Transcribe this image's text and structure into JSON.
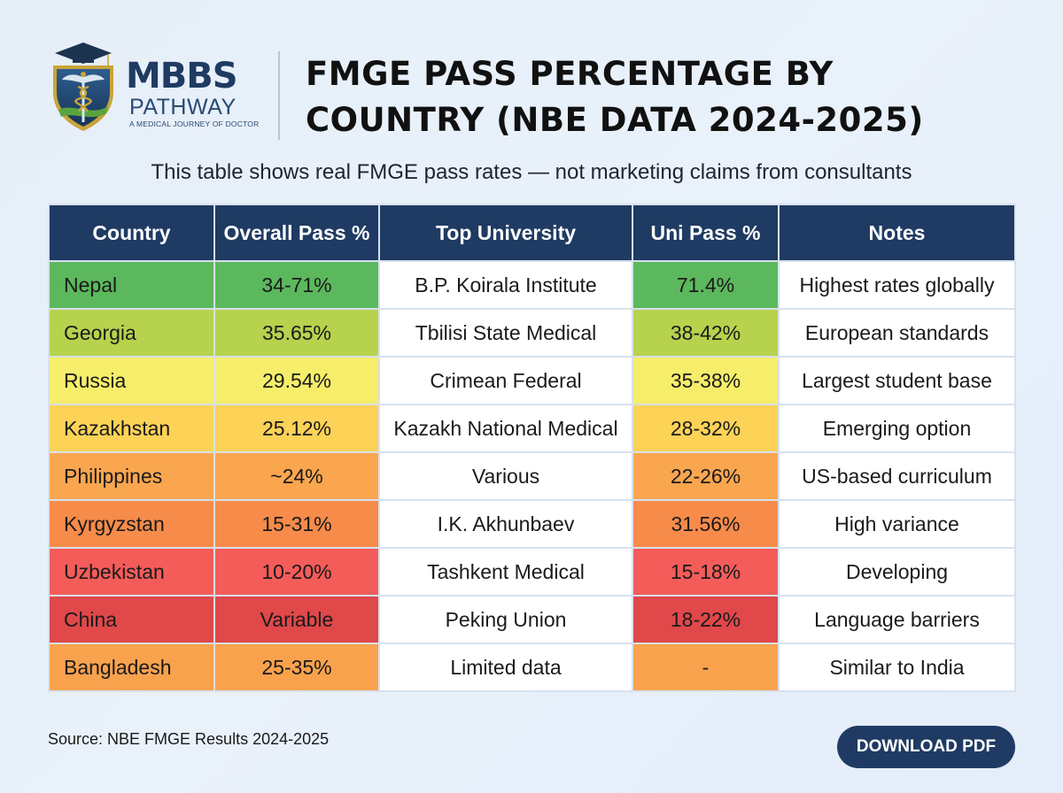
{
  "logo": {
    "main": "MBBS",
    "sub": "PATHWAY",
    "tagline": "A MEDICAL JOURNEY OF DOCTOR"
  },
  "header": {
    "title_line1": "FMGE PASS PERCENTAGE BY",
    "title_line2": "COUNTRY (NBE DATA 2024-2025)",
    "subtitle": "This table shows real FMGE pass rates — not marketing claims from consultants"
  },
  "table": {
    "columns": [
      "Country",
      "Overall Pass %",
      "Top University",
      "Uni Pass %",
      "Notes"
    ],
    "rows": [
      {
        "country": "Nepal",
        "overall": "34-71%",
        "university": "B.P. Koirala Institute",
        "uni_pass": "71.4%",
        "notes": "Highest rates globally",
        "color": "#5cb85c",
        "uni_color": "#5cb85c"
      },
      {
        "country": "Georgia",
        "overall": "35.65%",
        "university": "Tbilisi State Medical",
        "uni_pass": "38-42%",
        "notes": "European standards",
        "color": "#b7d24d",
        "uni_color": "#b7d24d"
      },
      {
        "country": "Russia",
        "overall": "29.54%",
        "university": "Crimean Federal",
        "uni_pass": "35-38%",
        "notes": "Largest student base",
        "color": "#f6ee6a",
        "uni_color": "#f6ee6a"
      },
      {
        "country": "Kazakhstan",
        "overall": "25.12%",
        "university": "Kazakh National Medical",
        "uni_pass": "28-32%",
        "notes": "Emerging option",
        "color": "#fcd257",
        "uni_color": "#fcd257"
      },
      {
        "country": "Philippines",
        "overall": "~24%",
        "university": "Various",
        "uni_pass": "22-26%",
        "notes": "US-based curriculum",
        "color": "#faa64f",
        "uni_color": "#faa64f"
      },
      {
        "country": "Kyrgyzstan",
        "overall": "15-31%",
        "university": "I.K. Akhunbaev",
        "uni_pass": "31.56%",
        "notes": "High variance",
        "color": "#f78b4a",
        "uni_color": "#f78b4a"
      },
      {
        "country": "Uzbekistan",
        "overall": "10-20%",
        "university": "Tashkent Medical",
        "uni_pass": "15-18%",
        "notes": "Developing",
        "color": "#f45c5a",
        "uni_color": "#f45c5a"
      },
      {
        "country": "China",
        "overall": "Variable",
        "university": "Peking Union",
        "uni_pass": "18-22%",
        "notes": "Language barriers",
        "color": "#e0484a",
        "uni_color": "#e0484a"
      },
      {
        "country": "Bangladesh",
        "overall": "25-35%",
        "university": "Limited data",
        "uni_pass": "-",
        "notes": "Similar to India",
        "color": "#f9a24e",
        "uni_color": "#f9a24e"
      }
    ]
  },
  "footer": {
    "source": "Source: NBE FMGE Results 2024-2025",
    "download_label": "DOWNLOAD PDF"
  },
  "colors": {
    "navy": "#1f3b63",
    "background": "#e6eef8"
  }
}
